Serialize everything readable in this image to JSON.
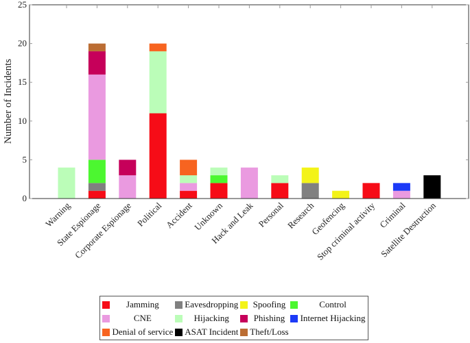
{
  "chart_data": {
    "type": "bar",
    "stacked": true,
    "title": "",
    "xlabel": "",
    "ylabel": "Number of Incidents",
    "ylim": [
      0,
      25
    ],
    "yticks": [
      0,
      5,
      10,
      15,
      20,
      25
    ],
    "grid": false,
    "legend_position": "bottom",
    "categories": [
      "Warning",
      "State Espionage",
      "Corporate Espionage",
      "Political",
      "Accident",
      "Unknown",
      "Hack and Leak",
      "Personal",
      "Research",
      "Geofencing",
      "Stop criminal activity",
      "Criminal",
      "Satellite Destruction"
    ],
    "series": [
      {
        "name": "Jamming",
        "color": "#f60c17",
        "values": [
          0,
          1,
          0,
          11,
          1,
          2,
          0,
          2,
          0,
          0,
          2,
          0,
          0
        ]
      },
      {
        "name": "Eavesdropping",
        "color": "#808080",
        "values": [
          0,
          1,
          0,
          0,
          0,
          0,
          0,
          0,
          2,
          0,
          0,
          0,
          0
        ]
      },
      {
        "name": "Spoofing",
        "color": "#f3f318",
        "values": [
          0,
          0,
          0,
          0,
          0,
          0,
          0,
          0,
          2,
          1,
          0,
          0,
          0
        ]
      },
      {
        "name": "Control",
        "color": "#4cf730",
        "values": [
          0,
          3,
          0,
          0,
          0,
          1,
          0,
          0,
          0,
          0,
          0,
          0,
          0
        ]
      },
      {
        "name": "CNE",
        "color": "#ea9ae0",
        "values": [
          0,
          11,
          3,
          0,
          1,
          0,
          4,
          0,
          0,
          0,
          0,
          1,
          0
        ]
      },
      {
        "name": "Hijacking",
        "color": "#bbfdb8",
        "values": [
          4,
          0,
          0,
          8,
          1,
          1,
          0,
          1,
          0,
          0,
          0,
          0,
          0
        ]
      },
      {
        "name": "Phishing",
        "color": "#c6005a",
        "values": [
          0,
          3,
          2,
          0,
          0,
          0,
          0,
          0,
          0,
          0,
          0,
          0,
          0
        ]
      },
      {
        "name": "Internet Hijacking",
        "color": "#1c3af7",
        "values": [
          0,
          0,
          0,
          0,
          0,
          0,
          0,
          0,
          0,
          0,
          0,
          1,
          0
        ]
      },
      {
        "name": "Denial of service",
        "color": "#f76420",
        "values": [
          0,
          0,
          0,
          1,
          2,
          0,
          0,
          0,
          0,
          0,
          0,
          0,
          0
        ]
      },
      {
        "name": "ASAT Incident",
        "color": "#000000",
        "values": [
          0,
          0,
          0,
          0,
          0,
          0,
          0,
          0,
          0,
          0,
          0,
          0,
          3
        ]
      },
      {
        "name": "Theft/Loss",
        "color": "#bb6d33",
        "values": [
          0,
          1,
          0,
          0,
          0,
          0,
          0,
          0,
          0,
          0,
          0,
          0,
          0
        ]
      }
    ],
    "stack_order": [
      "Jamming",
      "Eavesdropping",
      "Control",
      "CNE",
      "Hijacking",
      "Spoofing",
      "Phishing",
      "Internet Hijacking",
      "Denial of service",
      "ASAT Incident",
      "Theft/Loss"
    ]
  }
}
